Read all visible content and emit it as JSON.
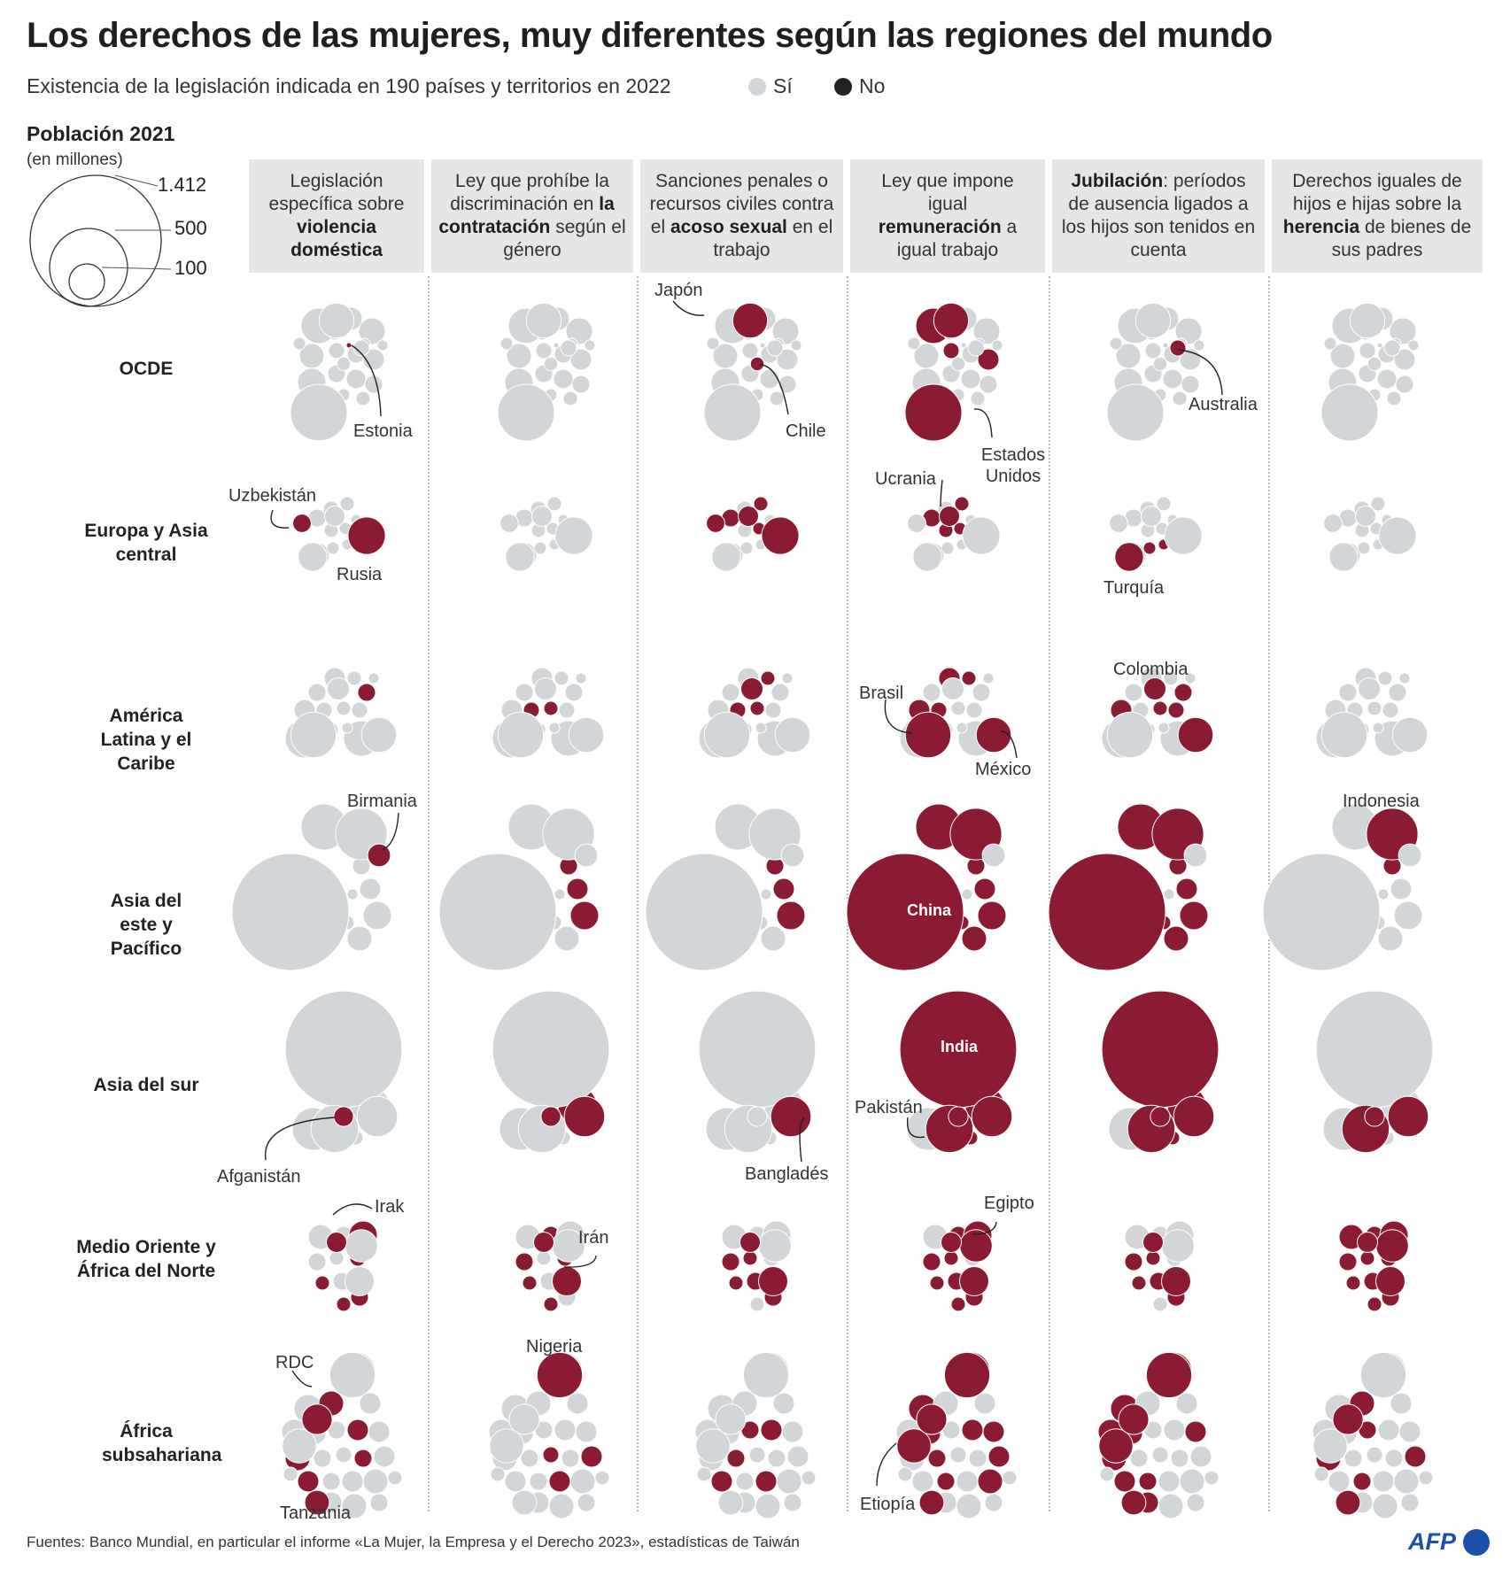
{
  "title": "Los derechos de las mujeres, muy diferentes según las regiones del mundo",
  "subtitle": "Existencia de la legislación indicada en 190 países y territorios en 2022",
  "legend": {
    "yes": "Sí",
    "no": "No"
  },
  "colors": {
    "yes": "#d3d6d8",
    "no": "#8b1a33",
    "header_bg": "#e4e6e7"
  },
  "population_key": {
    "title": "Población 2021",
    "subtitle": "(en millones)",
    "values": [
      "1.412",
      "500",
      "100"
    ]
  },
  "columns": [
    {
      "pre": "Legislación específica sobre ",
      "bold": "violencia doméstica",
      "post": ""
    },
    {
      "pre": "Ley que prohíbe la discriminación en ",
      "bold": "la contratación",
      "post": " según el género"
    },
    {
      "pre": "Sanciones penales o recursos civiles contra el ",
      "bold": "acoso sexual",
      "post": " en el trabajo"
    },
    {
      "pre": "Ley que impone igual ",
      "bold": "remuneración",
      "post": " a igual trabajo"
    },
    {
      "pre": "",
      "bold": "Jubilación",
      "post": ": períodos de ausencia ligados a los hijos son tenidos en cuenta"
    },
    {
      "pre": "Derechos iguales de hijos e hijas sobre la ",
      "bold": "herencia",
      "post": " de bienes de sus padres"
    }
  ],
  "regions": [
    "OCDE",
    "Europa y Asia central",
    "América Latina y el Caribe",
    "Asia del este y Pacífico",
    "Asia del sur",
    "Medio Oriente y África del Norte",
    "África subsahariana"
  ],
  "annotations": {
    "estonia": "Estonia",
    "japon": "Japón",
    "chile": "Chile",
    "estados_unidos": "Estados Unidos",
    "australia": "Australia",
    "uzbekistan": "Uzbekistán",
    "rusia": "Rusia",
    "ucrania": "Ucrania",
    "turquia": "Turquía",
    "brasil": "Brasil",
    "mexico": "México",
    "colombia": "Colombia",
    "birmania": "Birmania",
    "china": "China",
    "indonesia": "Indonesia",
    "india": "India",
    "afganistan": "Afganistán",
    "banglades": "Bangladés",
    "pakistan": "Pakistán",
    "irak": "Irak",
    "iran": "Irán",
    "egipto": "Egipto",
    "rdc": "RDC",
    "nigeria": "Nigeria",
    "tanzania": "Tanzania",
    "etiopia": "Etiopía"
  },
  "footer": "Fuentes: Banco Mundial, en particular el informe «La Mujer, la Empresa y el Derecho 2023», estadísticas de Taiwán",
  "credit": "AFP",
  "chart_data": {
    "type": "bubble-matrix",
    "size_variable": "Población 2021 (en millones)",
    "columns": [
      "violencia doméstica",
      "la contratación",
      "acoso sexual",
      "remuneración",
      "Jubilación",
      "herencia"
    ],
    "rows": [
      "OCDE",
      "Europa y Asia central",
      "América Latina y el Caribe",
      "Asia del este y Pacífico",
      "Asia del sur",
      "Medio Oriente y África del Norte",
      "África subsahariana"
    ],
    "countries": [
      {
        "name": "Estados Unidos",
        "row": 0,
        "pop": 332,
        "no": [
          3
        ]
      },
      {
        "name": "Japón",
        "row": 0,
        "pop": 126,
        "no": [
          2,
          3
        ]
      },
      {
        "name": "Australia",
        "row": 0,
        "pop": 26,
        "no": [
          4
        ]
      },
      {
        "name": "Chile",
        "row": 0,
        "pop": 19,
        "no": [
          2
        ]
      },
      {
        "name": "Estonia",
        "row": 0,
        "pop": 1.3,
        "no": [
          0
        ]
      },
      {
        "name": "Rusia",
        "row": 1,
        "pop": 144,
        "no": [
          0,
          2
        ]
      },
      {
        "name": "Uzbekistán",
        "row": 1,
        "pop": 35,
        "no": [
          0,
          2
        ]
      },
      {
        "name": "Ucrania",
        "row": 1,
        "pop": 43,
        "no": [
          2,
          3
        ]
      },
      {
        "name": "Turquía",
        "row": 1,
        "pop": 85,
        "no": [
          4
        ]
      },
      {
        "name": "Brasil",
        "row": 2,
        "pop": 214,
        "no": [
          3
        ]
      },
      {
        "name": "México",
        "row": 2,
        "pop": 127,
        "no": [
          3,
          4
        ]
      },
      {
        "name": "Colombia",
        "row": 2,
        "pop": 51,
        "no": [
          2,
          4
        ]
      },
      {
        "name": "China",
        "row": 3,
        "pop": 1412,
        "no": [
          3,
          4
        ]
      },
      {
        "name": "Indonesia",
        "row": 3,
        "pop": 274,
        "no": [
          3,
          4,
          5
        ]
      },
      {
        "name": "Birmania",
        "row": 3,
        "pop": 54,
        "no": [
          0
        ]
      },
      {
        "name": "India",
        "row": 4,
        "pop": 1408,
        "no": [
          3,
          4
        ]
      },
      {
        "name": "Pakistán",
        "row": 4,
        "pop": 231,
        "no": [
          3,
          4,
          5
        ]
      },
      {
        "name": "Bangladés",
        "row": 4,
        "pop": 169,
        "no": [
          1,
          2,
          3,
          4,
          5
        ]
      },
      {
        "name": "Afganistán",
        "row": 4,
        "pop": 40,
        "no": [
          0,
          1,
          3,
          4,
          5
        ]
      },
      {
        "name": "Egipto",
        "row": 5,
        "pop": 109,
        "no": [
          3,
          5
        ]
      },
      {
        "name": "Irán",
        "row": 5,
        "pop": 88,
        "no": [
          1,
          2,
          3,
          4,
          5
        ]
      },
      {
        "name": "Irak",
        "row": 5,
        "pop": 43,
        "no": [
          0,
          1,
          2,
          3,
          4,
          5
        ]
      },
      {
        "name": "Nigeria",
        "row": 6,
        "pop": 213,
        "no": [
          1,
          3,
          4
        ]
      },
      {
        "name": "Etiopía",
        "row": 6,
        "pop": 120,
        "no": [
          3,
          4
        ]
      },
      {
        "name": "RDC",
        "row": 6,
        "pop": 95,
        "no": [
          0,
          3,
          4,
          5
        ]
      },
      {
        "name": "Tanzania",
        "row": 6,
        "pop": 63,
        "no": [
          0,
          3,
          4,
          5
        ]
      }
    ]
  }
}
